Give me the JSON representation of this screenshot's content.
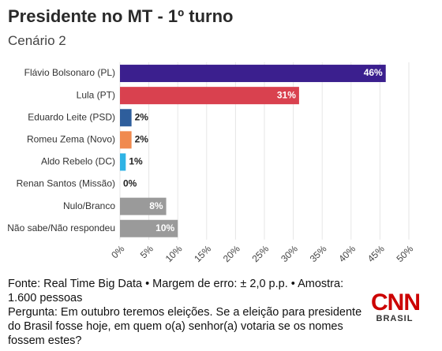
{
  "chart_data": {
    "type": "barh",
    "title": "Presidente no MT - 1º turno",
    "subtitle": "Cenário 2",
    "categories": [
      "Flávio Bolsonaro (PL)",
      "Lula (PT)",
      "Eduardo Leite (PSD)",
      "Romeu Zema (Novo)",
      "Aldo Rebelo (DC)",
      "Renan Santos (Missão)",
      "Nulo/Branco",
      "Não sabe/Não respondeu"
    ],
    "values": [
      46,
      31,
      2,
      2,
      1,
      0,
      8,
      10
    ],
    "value_labels": [
      "46%",
      "31%",
      "2%",
      "2%",
      "1%",
      "0%",
      "8%",
      "10%"
    ],
    "colors": [
      "#3b1f8e",
      "#d9414f",
      "#2e5e9c",
      "#f08a4f",
      "#2fb3e5",
      "#999999",
      "#9a9a9a",
      "#9a9a9a"
    ],
    "xlim": [
      0,
      50
    ],
    "xticks": [
      {
        "value": 0,
        "label": "0%"
      },
      {
        "value": 5,
        "label": "5%"
      },
      {
        "value": 10,
        "label": "10%"
      },
      {
        "value": 15,
        "label": "15%"
      },
      {
        "value": 20,
        "label": "20%"
      },
      {
        "value": 25,
        "label": "25%"
      },
      {
        "value": 30,
        "label": "30%"
      },
      {
        "value": 35,
        "label": "35%"
      },
      {
        "value": 40,
        "label": "40%"
      },
      {
        "value": 45,
        "label": "45%"
      },
      {
        "value": 50,
        "label": "50%"
      }
    ],
    "grid": true,
    "source": "Fonte: Real Time Big Data • Margem de erro: ± 2,0 p.p. • Amostra: 1.600 pessoas",
    "question": "Pergunta: Em outubro teremos eleições. Se a eleição para presidente do Brasil fosse hoje, em quem o(a) senhor(a) votaria se os nomes fossem estes?",
    "logo": {
      "name": "CNN",
      "subname": "BRASIL"
    }
  }
}
